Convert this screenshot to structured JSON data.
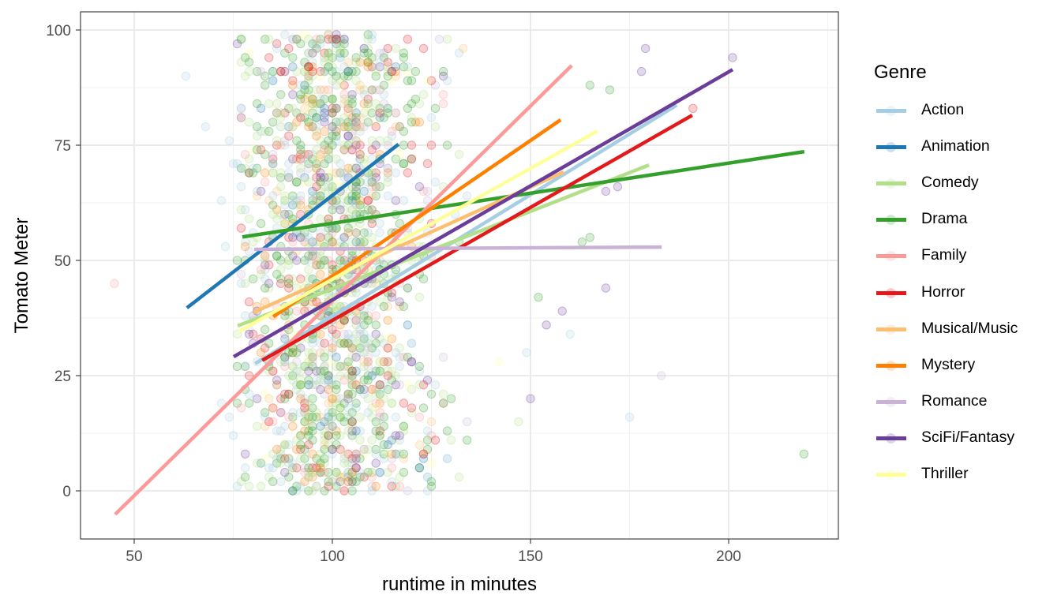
{
  "chart_data": {
    "type": "scatter",
    "title": "",
    "xlabel": "runtime in minutes",
    "ylabel": "Tomato Meter",
    "xlim": [
      36,
      229
    ],
    "ylim": [
      -10.5,
      104
    ],
    "x_ticks": [
      50,
      100,
      150,
      200
    ],
    "y_ticks": [
      0,
      25,
      50,
      75,
      100
    ],
    "x_tick_labels": [
      "50",
      "100",
      "150",
      "200"
    ],
    "y_tick_labels": [
      "0",
      "25",
      "50",
      "75",
      "100"
    ],
    "grid": true,
    "legend_position": "right",
    "legend_title": "Genre",
    "point_alpha": 0.2,
    "series": [
      {
        "name": "Action",
        "color": "#A6CEE3",
        "fit_line": {
          "x": [
            80.5,
            186.9
          ],
          "y": [
            27.6,
            83.7
          ]
        }
      },
      {
        "name": "Animation",
        "color": "#1F78B4",
        "fit_line": {
          "x": [
            63.3,
            116.7
          ],
          "y": [
            39.7,
            75.2
          ]
        }
      },
      {
        "name": "Comedy",
        "color": "#B2DF8A",
        "fit_line": {
          "x": [
            76.1,
            179.9
          ],
          "y": [
            35.8,
            70.7
          ]
        }
      },
      {
        "name": "Drama",
        "color": "#33A02C",
        "fit_line": {
          "x": [
            77.3,
            219.1
          ],
          "y": [
            55.1,
            73.6
          ]
        }
      },
      {
        "name": "Family",
        "color": "#FB9A99",
        "fit_line": {
          "x": [
            45.2,
            160.4
          ],
          "y": [
            -5.1,
            92.3
          ]
        }
      },
      {
        "name": "Horror",
        "color": "#E31A1C",
        "fit_line": {
          "x": [
            82.3,
            190.8
          ],
          "y": [
            28.3,
            81.5
          ]
        }
      },
      {
        "name": "Musical/Music",
        "color": "#FDBF6F",
        "fit_line": {
          "x": [
            80.1,
            158.4
          ],
          "y": [
            38.7,
            69.2
          ]
        }
      },
      {
        "name": "Mystery",
        "color": "#FF7F00",
        "fit_line": {
          "x": [
            85.1,
            157.6
          ],
          "y": [
            37.8,
            80.5
          ]
        }
      },
      {
        "name": "Romance",
        "color": "#CAB2D6",
        "fit_line": {
          "x": [
            80.3,
            183.1
          ],
          "y": [
            52.4,
            52.9
          ]
        }
      },
      {
        "name": "SciFi/Fantasy",
        "color": "#6A3D9A",
        "fit_line": {
          "x": [
            75.1,
            201.0
          ],
          "y": [
            29.1,
            91.4
          ]
        }
      },
      {
        "name": "Thriller",
        "color": "#FFFF99",
        "fit_line": {
          "x": [
            76.5,
            166.9
          ],
          "y": [
            34.6,
            78.1
          ]
        }
      }
    ],
    "notable_points": [
      {
        "genre": "Family",
        "x": 45,
        "y": 45
      },
      {
        "genre": "Action",
        "x": 63,
        "y": 90
      },
      {
        "genre": "Action",
        "x": 68,
        "y": 79
      },
      {
        "genre": "Drama",
        "x": 219,
        "y": 8
      },
      {
        "genre": "SciFi/Fantasy",
        "x": 201,
        "y": 94
      },
      {
        "genre": "SciFi/Fantasy",
        "x": 179,
        "y": 96
      },
      {
        "genre": "SciFi/Fantasy",
        "x": 178,
        "y": 91
      },
      {
        "genre": "Horror",
        "x": 191,
        "y": 83
      },
      {
        "genre": "Drama",
        "x": 165,
        "y": 88
      },
      {
        "genre": "Drama",
        "x": 170,
        "y": 87
      },
      {
        "genre": "Romance",
        "x": 183,
        "y": 25
      },
      {
        "genre": "Action",
        "x": 175,
        "y": 16
      },
      {
        "genre": "SciFi/Fantasy",
        "x": 169,
        "y": 44
      },
      {
        "genre": "SciFi/Fantasy",
        "x": 172,
        "y": 66
      },
      {
        "genre": "SciFi/Fantasy",
        "x": 169,
        "y": 65
      },
      {
        "genre": "SciFi/Fantasy",
        "x": 150,
        "y": 20
      },
      {
        "genre": "Drama",
        "x": 152,
        "y": 42
      },
      {
        "genre": "SciFi/Fantasy",
        "x": 154,
        "y": 36
      },
      {
        "genre": "SciFi/Fantasy",
        "x": 158,
        "y": 39
      },
      {
        "genre": "Action",
        "x": 160,
        "y": 34
      },
      {
        "genre": "Action",
        "x": 149,
        "y": 30
      },
      {
        "genre": "Drama",
        "x": 163,
        "y": 54
      },
      {
        "genre": "Drama",
        "x": 165,
        "y": 55
      },
      {
        "genre": "Comedy",
        "x": 147,
        "y": 15
      },
      {
        "genre": "Thriller",
        "x": 142,
        "y": 28
      },
      {
        "genre": "Action",
        "x": 72,
        "y": 19
      },
      {
        "genre": "Action",
        "x": 74,
        "y": 16
      },
      {
        "genre": "Action",
        "x": 75,
        "y": 12
      },
      {
        "genre": "Action",
        "x": 73,
        "y": 53
      },
      {
        "genre": "Action",
        "x": 72,
        "y": 63
      },
      {
        "genre": "Action",
        "x": 74,
        "y": 76
      },
      {
        "genre": "Action",
        "x": 75,
        "y": 71
      },
      {
        "genre": "Action",
        "x": 77,
        "y": 83
      },
      {
        "genre": "Action",
        "x": 77,
        "y": 81
      }
    ],
    "cloud": {
      "count": 1600,
      "x_center": 101,
      "x_spread": 12,
      "x_min": 76,
      "x_max": 135,
      "y_min": 0,
      "y_max": 99,
      "seed": 7
    }
  },
  "axes": {
    "x_title": "runtime in minutes",
    "y_title": "Tomato Meter"
  },
  "legend": {
    "title": "Genre",
    "items": [
      {
        "label": "Action",
        "color": "#A6CEE3"
      },
      {
        "label": "Animation",
        "color": "#1F78B4"
      },
      {
        "label": "Comedy",
        "color": "#B2DF8A"
      },
      {
        "label": "Drama",
        "color": "#33A02C"
      },
      {
        "label": "Family",
        "color": "#FB9A99"
      },
      {
        "label": "Horror",
        "color": "#E31A1C"
      },
      {
        "label": "Musical/Music",
        "color": "#FDBF6F"
      },
      {
        "label": "Mystery",
        "color": "#FF7F00"
      },
      {
        "label": "Romance",
        "color": "#CAB2D6"
      },
      {
        "label": "SciFi/Fantasy",
        "color": "#6A3D9A"
      },
      {
        "label": "Thriller",
        "color": "#FFFF99"
      }
    ]
  }
}
